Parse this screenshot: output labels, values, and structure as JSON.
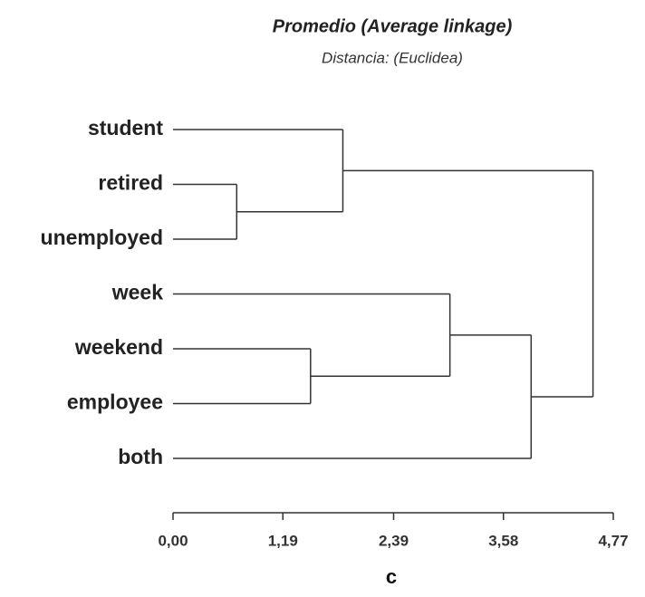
{
  "chart_data": {
    "type": "dendrogram",
    "title": "Promedio (Average linkage)",
    "subtitle": "Distancia: (Euclidea)",
    "caption": "c",
    "color": "#333333",
    "xlim": [
      0,
      4.77
    ],
    "xticks": [
      {
        "value": 0,
        "label": "0,00"
      },
      {
        "value": 1.19,
        "label": "1,19"
      },
      {
        "value": 2.39,
        "label": "2,39"
      },
      {
        "value": 3.58,
        "label": "3,58"
      },
      {
        "value": 4.77,
        "label": "4,77"
      }
    ],
    "tree": {
      "height": 4.55,
      "children": [
        {
          "height": 1.84,
          "children": [
            {
              "label": "student"
            },
            {
              "height": 0.69,
              "children": [
                {
                  "label": "retired"
                },
                {
                  "label": "unemployed"
                }
              ]
            }
          ]
        },
        {
          "height": 3.88,
          "children": [
            {
              "height": 3.0,
              "children": [
                {
                  "label": "week"
                },
                {
                  "height": 1.49,
                  "children": [
                    {
                      "label": "weekend"
                    },
                    {
                      "label": "employee"
                    }
                  ]
                }
              ]
            },
            {
              "label": "both"
            }
          ]
        }
      ]
    }
  }
}
